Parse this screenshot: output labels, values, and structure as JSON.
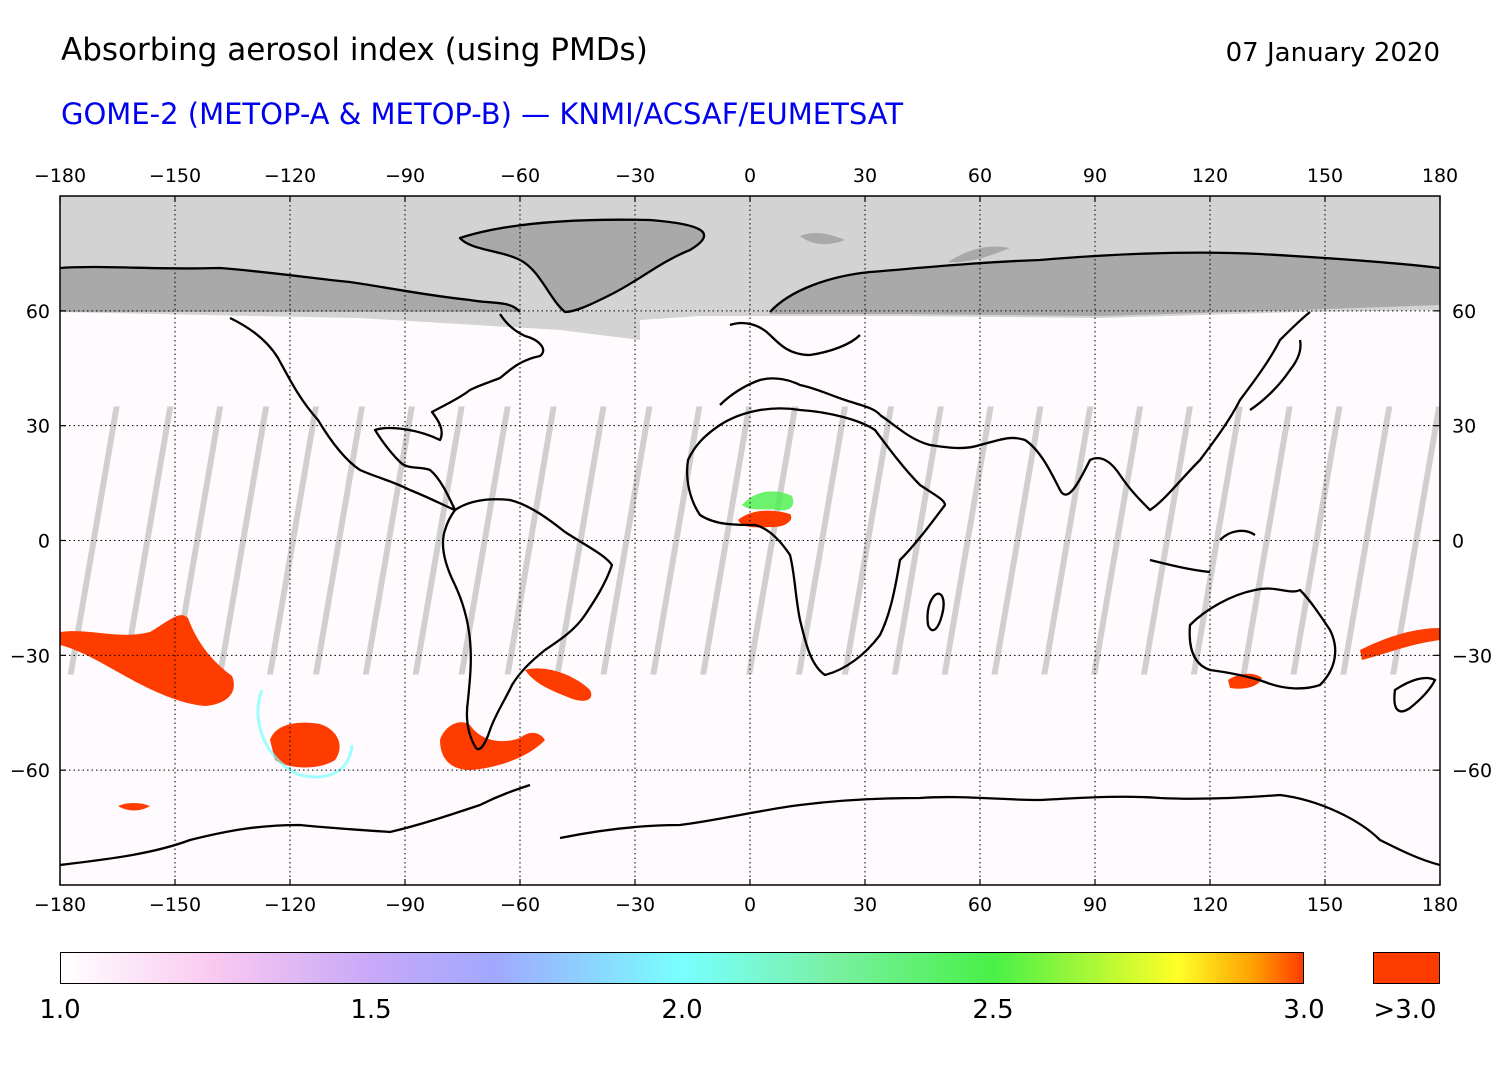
{
  "header": {
    "title": "Absorbing aerosol index (using PMDs)",
    "date": "07 January 2020",
    "subtitle": "GOME-2 (METOP-A & METOP-B) — KNMI/ACSAF/EUMETSAT"
  },
  "colors": {
    "subtitle": "#0000ee",
    "no_data_polar": "#d3d3d3",
    "land_polar": "#a9a9a9",
    "gap_stripe": "#cfcfcf",
    "gap_stripe_land": "#a9a9a9",
    "high_aerosol": "#ff3c00",
    "coast": "#000000"
  },
  "map": {
    "projection": "equirectangular",
    "lon_range": [
      -180,
      180
    ],
    "lat_range": [
      -90,
      90
    ],
    "x_ticks": [
      -180,
      -150,
      -120,
      -90,
      -60,
      -30,
      0,
      30,
      60,
      90,
      120,
      150,
      180
    ],
    "x_tick_labels": [
      "−180",
      "−150",
      "−120",
      "−90",
      "−60",
      "−30",
      "0",
      "30",
      "60",
      "90",
      "120",
      "150",
      "180"
    ],
    "y_ticks": [
      60,
      30,
      0,
      -30,
      -60
    ],
    "y_tick_labels": [
      "60",
      "30",
      "0",
      "−30",
      "−60"
    ],
    "grid": "dotted"
  },
  "colorbar": {
    "min": 1.0,
    "max": 3.0,
    "labels": [
      "1.0",
      "1.5",
      "2.0",
      "2.5",
      "3.0"
    ],
    "label_values": [
      1.0,
      1.5,
      2.0,
      2.5,
      3.0
    ],
    "over_label": ">3.0",
    "stops": [
      {
        "value": 1.0,
        "color": "#ffffff"
      },
      {
        "value": 1.25,
        "color": "#f8c8f0"
      },
      {
        "value": 1.5,
        "color": "#c8a8f8"
      },
      {
        "value": 1.7,
        "color": "#a0a8ff"
      },
      {
        "value": 2.0,
        "color": "#78ffff"
      },
      {
        "value": 2.25,
        "color": "#78f0a0"
      },
      {
        "value": 2.5,
        "color": "#48f048"
      },
      {
        "value": 2.8,
        "color": "#ffff28"
      },
      {
        "value": 2.92,
        "color": "#ffa000"
      },
      {
        "value": 3.0,
        "color": "#ff3c00"
      }
    ],
    "over_color": "#ff3c00"
  }
}
